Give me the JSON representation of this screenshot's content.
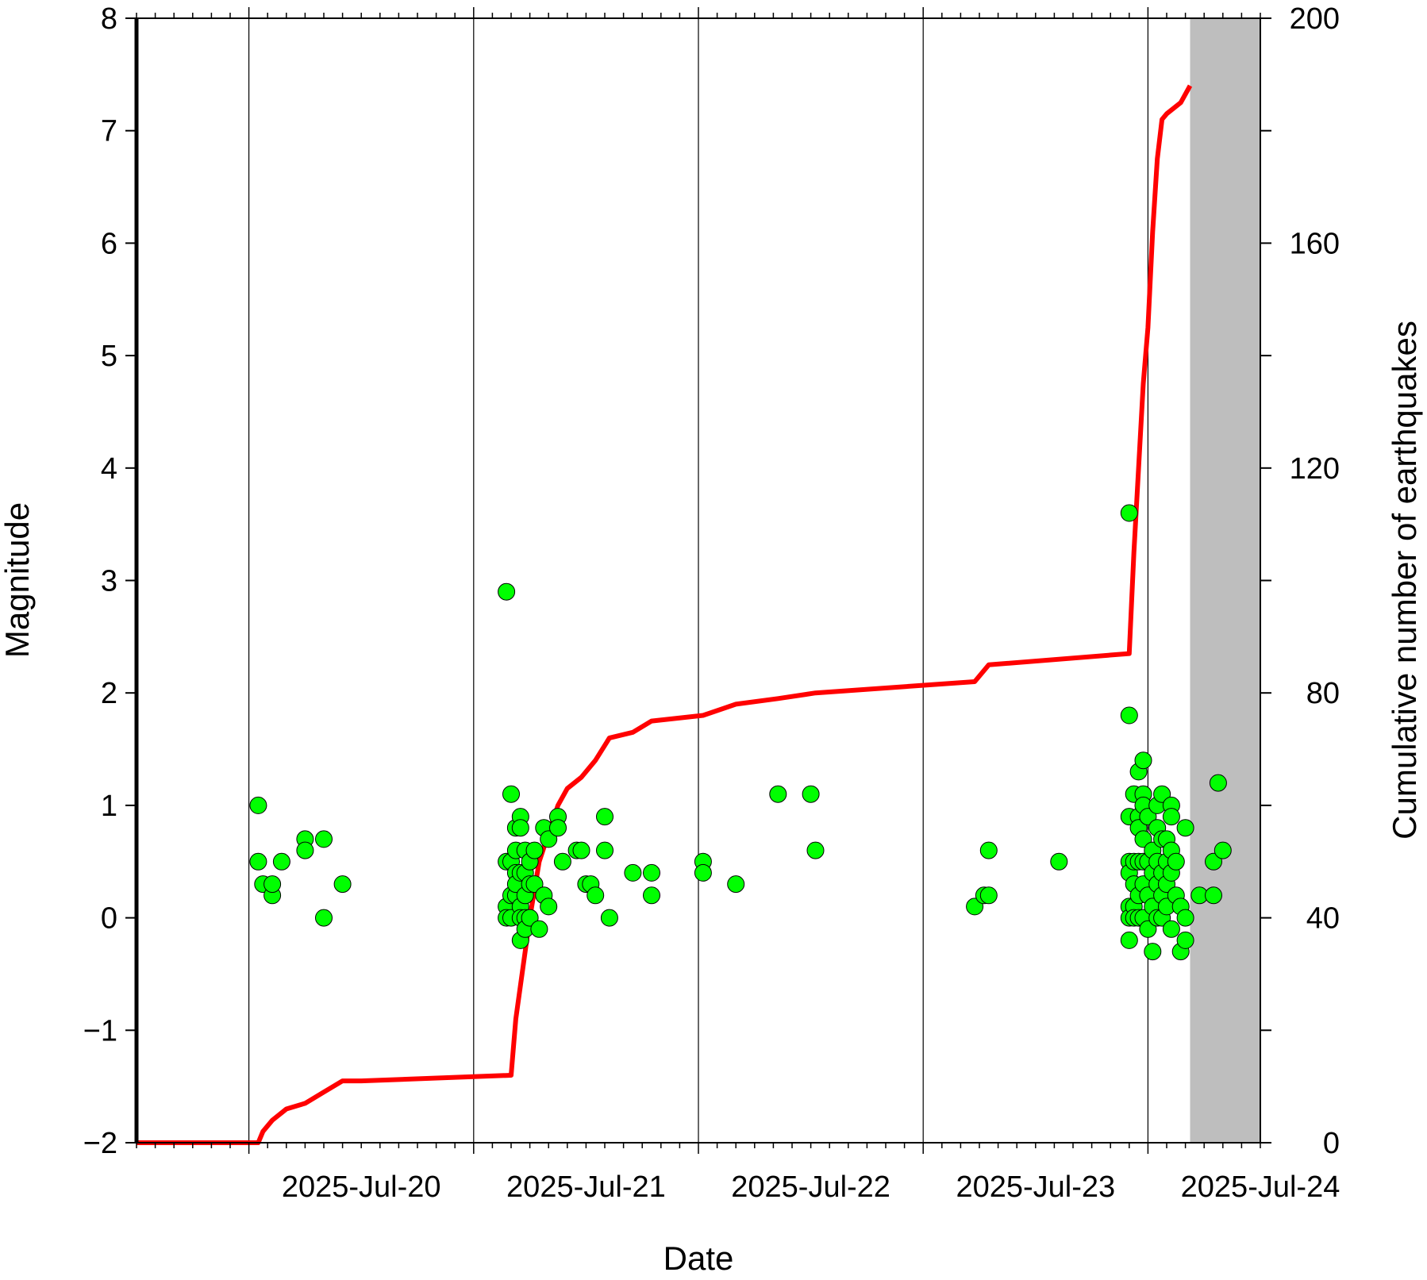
{
  "chart_data": {
    "type": "scatter",
    "xlabel": "Date",
    "ylabel": "Magnitude",
    "y2label": "Cumulative number of earthquakes",
    "x_axis": {
      "type": "date",
      "start": "2025-07-19T12:00",
      "end": "2025-07-24T12:00",
      "tick_labels": [
        "2025-Jul-20",
        "2025-Jul-21",
        "2025-Jul-22",
        "2025-Jul-23",
        "2025-Jul-24"
      ],
      "tick_dates": [
        "2025-07-20T12:00",
        "2025-07-21T12:00",
        "2025-07-22T12:00",
        "2025-07-23T12:00",
        "2025-07-24T12:00"
      ],
      "label_position": "centered on each day",
      "day_boundary_gridlines": true
    },
    "ylim": [
      -2,
      8
    ],
    "yticks": [
      "−2",
      "−1",
      "0",
      "1",
      "2",
      "3",
      "4",
      "5",
      "6",
      "7",
      "8"
    ],
    "y2lim": [
      0,
      200
    ],
    "y2ticks": [
      "0",
      "40",
      "80",
      "120",
      "160",
      "200"
    ],
    "shaded_region": {
      "from": "2025-07-24T04:30",
      "to": "2025-07-24T12:00",
      "color": "#bebebe"
    },
    "series": [
      {
        "kind": "scatter",
        "axis": "left",
        "color": "#00ff00",
        "edge_color": "#000000",
        "points": [
          [
            "2025-07-20T01:00",
            1.0
          ],
          [
            "2025-07-20T01:00",
            0.5
          ],
          [
            "2025-07-20T01:30",
            0.3
          ],
          [
            "2025-07-20T02:30",
            0.2
          ],
          [
            "2025-07-20T02:30",
            0.3
          ],
          [
            "2025-07-20T03:30",
            0.5
          ],
          [
            "2025-07-20T06:00",
            0.7
          ],
          [
            "2025-07-20T06:00",
            0.6
          ],
          [
            "2025-07-20T08:00",
            0.7
          ],
          [
            "2025-07-20T08:00",
            0.0
          ],
          [
            "2025-07-20T10:00",
            0.3
          ],
          [
            "2025-07-21T03:30",
            2.9
          ],
          [
            "2025-07-21T04:00",
            1.1
          ],
          [
            "2025-07-21T03:30",
            0.5
          ],
          [
            "2025-07-21T03:30",
            0.1
          ],
          [
            "2025-07-21T03:30",
            0.0
          ],
          [
            "2025-07-21T04:00",
            0.5
          ],
          [
            "2025-07-21T04:00",
            0.2
          ],
          [
            "2025-07-21T04:00",
            0.0
          ],
          [
            "2025-07-21T04:30",
            0.8
          ],
          [
            "2025-07-21T04:30",
            0.6
          ],
          [
            "2025-07-21T04:30",
            0.4
          ],
          [
            "2025-07-21T04:30",
            0.2
          ],
          [
            "2025-07-21T04:30",
            0.3
          ],
          [
            "2025-07-21T05:00",
            0.9
          ],
          [
            "2025-07-21T05:00",
            0.8
          ],
          [
            "2025-07-21T05:00",
            0.4
          ],
          [
            "2025-07-21T05:00",
            0.1
          ],
          [
            "2025-07-21T05:00",
            0.0
          ],
          [
            "2025-07-21T05:00",
            -0.2
          ],
          [
            "2025-07-21T05:30",
            0.6
          ],
          [
            "2025-07-21T05:30",
            0.4
          ],
          [
            "2025-07-21T05:30",
            0.2
          ],
          [
            "2025-07-21T05:30",
            0.0
          ],
          [
            "2025-07-21T05:30",
            -0.1
          ],
          [
            "2025-07-21T06:00",
            0.5
          ],
          [
            "2025-07-21T06:00",
            0.3
          ],
          [
            "2025-07-21T06:00",
            0.0
          ],
          [
            "2025-07-21T06:30",
            0.6
          ],
          [
            "2025-07-21T06:30",
            0.3
          ],
          [
            "2025-07-21T07:00",
            -0.1
          ],
          [
            "2025-07-21T07:30",
            0.8
          ],
          [
            "2025-07-21T07:30",
            0.2
          ],
          [
            "2025-07-21T08:00",
            0.7
          ],
          [
            "2025-07-21T08:00",
            0.1
          ],
          [
            "2025-07-21T09:00",
            0.9
          ],
          [
            "2025-07-21T09:00",
            0.8
          ],
          [
            "2025-07-21T09:30",
            0.5
          ],
          [
            "2025-07-21T11:00",
            0.6
          ],
          [
            "2025-07-21T11:30",
            0.6
          ],
          [
            "2025-07-21T12:00",
            0.3
          ],
          [
            "2025-07-21T12:30",
            0.3
          ],
          [
            "2025-07-21T13:00",
            0.2
          ],
          [
            "2025-07-21T14:00",
            0.6
          ],
          [
            "2025-07-21T14:00",
            0.9
          ],
          [
            "2025-07-21T14:30",
            0.0
          ],
          [
            "2025-07-21T17:00",
            0.4
          ],
          [
            "2025-07-21T19:00",
            0.4
          ],
          [
            "2025-07-21T19:00",
            0.2
          ],
          [
            "2025-07-22T00:30",
            0.5
          ],
          [
            "2025-07-22T00:30",
            0.4
          ],
          [
            "2025-07-22T04:00",
            0.3
          ],
          [
            "2025-07-22T08:30",
            1.1
          ],
          [
            "2025-07-22T12:00",
            1.1
          ],
          [
            "2025-07-22T12:30",
            0.6
          ],
          [
            "2025-07-23T05:30",
            0.1
          ],
          [
            "2025-07-23T06:30",
            0.2
          ],
          [
            "2025-07-23T07:00",
            0.6
          ],
          [
            "2025-07-23T07:00",
            0.2
          ],
          [
            "2025-07-23T14:30",
            0.5
          ],
          [
            "2025-07-23T22:00",
            3.6
          ],
          [
            "2025-07-23T22:00",
            1.8
          ],
          [
            "2025-07-23T22:00",
            0.9
          ],
          [
            "2025-07-23T22:00",
            0.5
          ],
          [
            "2025-07-23T22:00",
            0.4
          ],
          [
            "2025-07-23T22:00",
            0.1
          ],
          [
            "2025-07-23T22:00",
            0.0
          ],
          [
            "2025-07-23T22:00",
            -0.2
          ],
          [
            "2025-07-23T22:30",
            1.1
          ],
          [
            "2025-07-23T22:30",
            0.5
          ],
          [
            "2025-07-23T22:30",
            0.3
          ],
          [
            "2025-07-23T22:30",
            0.1
          ],
          [
            "2025-07-23T22:30",
            0.0
          ],
          [
            "2025-07-23T23:00",
            1.3
          ],
          [
            "2025-07-23T23:00",
            0.9
          ],
          [
            "2025-07-23T23:00",
            0.8
          ],
          [
            "2025-07-23T23:00",
            0.5
          ],
          [
            "2025-07-23T23:00",
            0.2
          ],
          [
            "2025-07-23T23:00",
            0.0
          ],
          [
            "2025-07-23T23:30",
            1.4
          ],
          [
            "2025-07-23T23:30",
            1.1
          ],
          [
            "2025-07-23T23:30",
            1.0
          ],
          [
            "2025-07-23T23:30",
            0.7
          ],
          [
            "2025-07-23T23:30",
            0.5
          ],
          [
            "2025-07-23T23:30",
            0.3
          ],
          [
            "2025-07-23T23:30",
            0.0
          ],
          [
            "2025-07-24T00:00",
            0.9
          ],
          [
            "2025-07-24T00:00",
            0.5
          ],
          [
            "2025-07-24T00:00",
            0.2
          ],
          [
            "2025-07-24T00:00",
            -0.1
          ],
          [
            "2025-07-24T00:30",
            0.6
          ],
          [
            "2025-07-24T00:30",
            0.4
          ],
          [
            "2025-07-24T00:30",
            0.1
          ],
          [
            "2025-07-24T00:30",
            -0.3
          ],
          [
            "2025-07-24T01:00",
            1.0
          ],
          [
            "2025-07-24T01:00",
            0.8
          ],
          [
            "2025-07-24T01:00",
            0.5
          ],
          [
            "2025-07-24T01:00",
            0.3
          ],
          [
            "2025-07-24T01:00",
            0.0
          ],
          [
            "2025-07-24T01:30",
            1.1
          ],
          [
            "2025-07-24T01:30",
            0.7
          ],
          [
            "2025-07-24T01:30",
            0.4
          ],
          [
            "2025-07-24T01:30",
            0.2
          ],
          [
            "2025-07-24T01:30",
            0.0
          ],
          [
            "2025-07-24T02:00",
            0.7
          ],
          [
            "2025-07-24T02:00",
            0.5
          ],
          [
            "2025-07-24T02:00",
            0.3
          ],
          [
            "2025-07-24T02:00",
            0.1
          ],
          [
            "2025-07-24T02:30",
            1.0
          ],
          [
            "2025-07-24T02:30",
            0.9
          ],
          [
            "2025-07-24T02:30",
            0.6
          ],
          [
            "2025-07-24T02:30",
            0.4
          ],
          [
            "2025-07-24T02:30",
            -0.1
          ],
          [
            "2025-07-24T03:00",
            0.5
          ],
          [
            "2025-07-24T03:00",
            0.2
          ],
          [
            "2025-07-24T03:30",
            -0.3
          ],
          [
            "2025-07-24T03:30",
            0.1
          ],
          [
            "2025-07-24T04:00",
            0.8
          ],
          [
            "2025-07-24T04:00",
            -0.2
          ],
          [
            "2025-07-24T04:00",
            0.0
          ],
          [
            "2025-07-24T05:30",
            0.2
          ],
          [
            "2025-07-24T07:00",
            0.5
          ],
          [
            "2025-07-24T07:00",
            0.2
          ],
          [
            "2025-07-24T07:30",
            1.2
          ],
          [
            "2025-07-24T08:00",
            0.6
          ]
        ]
      },
      {
        "kind": "step-line",
        "axis": "right",
        "color": "#ff0000",
        "points": [
          [
            "2025-07-19T12:00",
            0
          ],
          [
            "2025-07-20T01:00",
            0
          ],
          [
            "2025-07-20T01:30",
            2
          ],
          [
            "2025-07-20T02:30",
            4
          ],
          [
            "2025-07-20T04:00",
            6
          ],
          [
            "2025-07-20T06:00",
            7
          ],
          [
            "2025-07-20T07:00",
            8
          ],
          [
            "2025-07-20T08:00",
            9
          ],
          [
            "2025-07-20T10:00",
            11
          ],
          [
            "2025-07-20T12:00",
            11
          ],
          [
            "2025-07-21T04:00",
            12
          ],
          [
            "2025-07-21T04:30",
            22
          ],
          [
            "2025-07-21T05:00",
            28
          ],
          [
            "2025-07-21T06:00",
            40
          ],
          [
            "2025-07-21T07:00",
            50
          ],
          [
            "2025-07-21T08:00",
            55
          ],
          [
            "2025-07-21T09:00",
            60
          ],
          [
            "2025-07-21T10:00",
            63
          ],
          [
            "2025-07-21T11:30",
            65
          ],
          [
            "2025-07-21T13:00",
            68
          ],
          [
            "2025-07-21T14:30",
            72
          ],
          [
            "2025-07-21T17:00",
            73
          ],
          [
            "2025-07-21T19:00",
            75
          ],
          [
            "2025-07-22T00:30",
            76
          ],
          [
            "2025-07-22T04:00",
            78
          ],
          [
            "2025-07-22T08:30",
            79
          ],
          [
            "2025-07-22T12:30",
            80
          ],
          [
            "2025-07-23T05:30",
            82
          ],
          [
            "2025-07-23T07:00",
            85
          ],
          [
            "2025-07-23T22:00",
            87
          ],
          [
            "2025-07-23T22:30",
            105
          ],
          [
            "2025-07-23T23:00",
            120
          ],
          [
            "2025-07-23T23:30",
            135
          ],
          [
            "2025-07-24T00:00",
            145
          ],
          [
            "2025-07-24T00:30",
            162
          ],
          [
            "2025-07-24T01:00",
            175
          ],
          [
            "2025-07-24T01:30",
            182
          ],
          [
            "2025-07-24T02:00",
            183
          ],
          [
            "2025-07-24T03:30",
            185
          ],
          [
            "2025-07-24T04:30",
            188
          ]
        ]
      }
    ]
  }
}
